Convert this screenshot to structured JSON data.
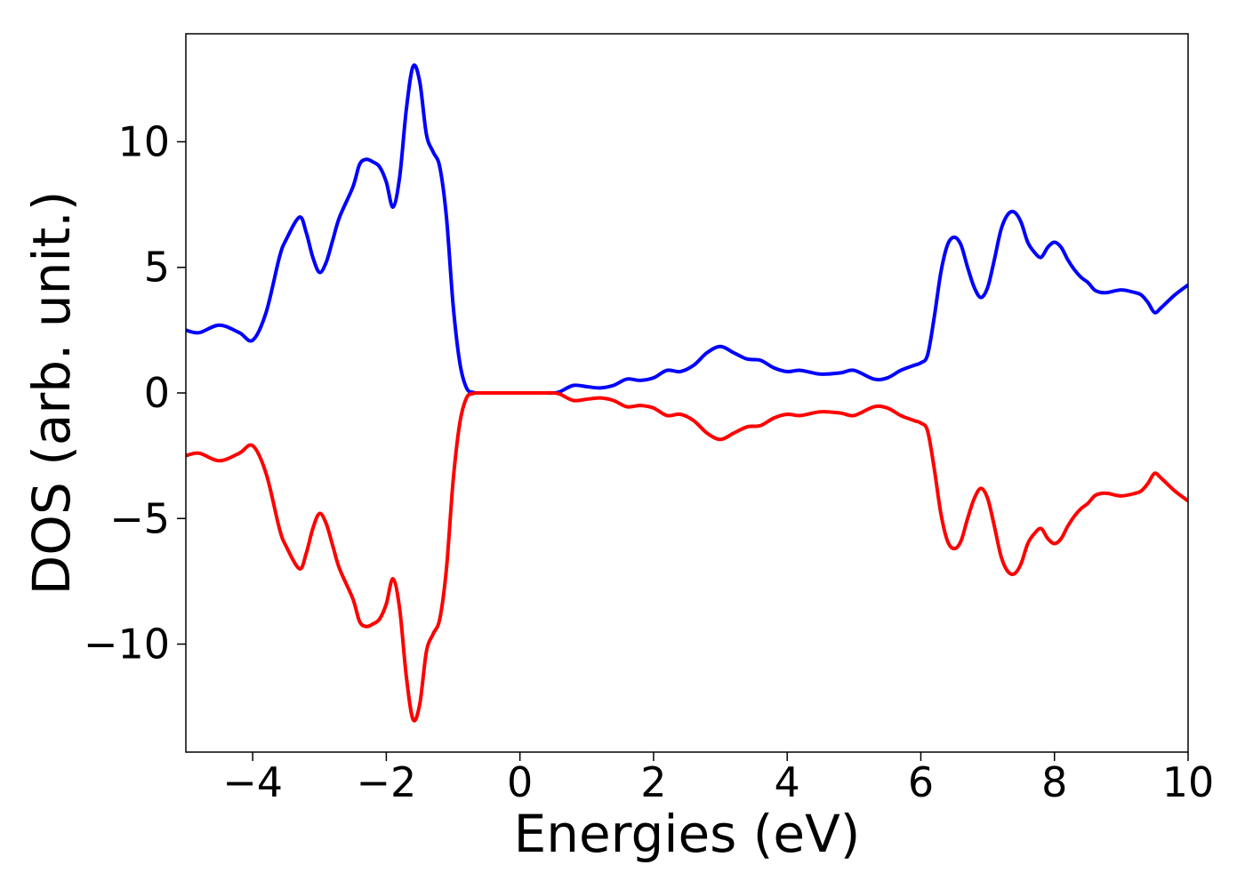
{
  "chart_data": {
    "type": "line",
    "title": "",
    "xlabel": "Energies (eV)",
    "ylabel": "DOS (arb. unit.)",
    "xlim": [
      -5,
      10
    ],
    "ylim": [
      -14.3,
      14.3
    ],
    "xticks": [
      -4,
      -2,
      0,
      2,
      4,
      6,
      8,
      10
    ],
    "xtick_labels": [
      "−4",
      "−2",
      "0",
      "2",
      "4",
      "6",
      "8",
      "10"
    ],
    "yticks": [
      -10,
      -5,
      0,
      5,
      10
    ],
    "ytick_labels": [
      "−10",
      "−5",
      "0",
      "5",
      "10"
    ],
    "grid": false,
    "legend": "none",
    "series": [
      {
        "color": "#0000ff",
        "x": [
          -5.0,
          -4.8,
          -4.5,
          -4.2,
          -4.0,
          -3.8,
          -3.6,
          -3.5,
          -3.3,
          -3.2,
          -3.1,
          -3.0,
          -2.9,
          -2.8,
          -2.7,
          -2.5,
          -2.4,
          -2.3,
          -2.2,
          -2.1,
          -2.0,
          -1.9,
          -1.8,
          -1.7,
          -1.6,
          -1.5,
          -1.4,
          -1.3,
          -1.2,
          -1.1,
          -1.0,
          -0.9,
          -0.8,
          -0.7,
          -0.6,
          -0.5,
          -0.4,
          -0.3,
          0.0,
          0.3,
          0.5,
          0.6,
          0.8,
          1.0,
          1.2,
          1.4,
          1.6,
          1.8,
          2.0,
          2.2,
          2.4,
          2.6,
          2.8,
          3.0,
          3.2,
          3.4,
          3.6,
          3.8,
          4.0,
          4.2,
          4.5,
          4.8,
          5.0,
          5.3,
          5.5,
          5.7,
          5.9,
          6.0,
          6.1,
          6.2,
          6.3,
          6.4,
          6.5,
          6.6,
          6.7,
          6.8,
          6.9,
          7.0,
          7.1,
          7.2,
          7.3,
          7.4,
          7.5,
          7.6,
          7.7,
          7.8,
          7.9,
          8.0,
          8.1,
          8.2,
          8.3,
          8.4,
          8.5,
          8.6,
          8.7,
          8.8,
          9.0,
          9.2,
          9.3,
          9.4,
          9.5,
          9.6,
          9.8,
          10.0
        ],
        "y": [
          2.5,
          2.4,
          2.7,
          2.4,
          2.1,
          3.2,
          5.4,
          6.1,
          7.0,
          6.4,
          5.4,
          4.8,
          5.2,
          6.1,
          7.0,
          8.2,
          9.1,
          9.3,
          9.2,
          9.0,
          8.4,
          7.4,
          8.6,
          11.3,
          13.0,
          12.4,
          10.3,
          9.6,
          9.0,
          7.0,
          3.5,
          1.2,
          0.2,
          0.02,
          0.0,
          0.0,
          0.0,
          0.0,
          0.0,
          0.0,
          0.0,
          0.05,
          0.3,
          0.25,
          0.2,
          0.3,
          0.55,
          0.5,
          0.6,
          0.9,
          0.85,
          1.1,
          1.6,
          1.85,
          1.6,
          1.35,
          1.3,
          1.0,
          0.85,
          0.9,
          0.75,
          0.8,
          0.9,
          0.55,
          0.6,
          0.9,
          1.1,
          1.2,
          1.5,
          3.0,
          4.8,
          5.9,
          6.2,
          5.9,
          5.0,
          4.2,
          3.8,
          4.2,
          5.3,
          6.5,
          7.1,
          7.2,
          6.8,
          6.0,
          5.6,
          5.4,
          5.8,
          6.0,
          5.8,
          5.3,
          4.9,
          4.6,
          4.4,
          4.1,
          4.0,
          4.0,
          4.1,
          4.0,
          3.9,
          3.6,
          3.2,
          3.4,
          3.9,
          4.3
        ]
      },
      {
        "color": "#ff0000",
        "mirror_of": 0,
        "y_scale": -1
      }
    ]
  }
}
